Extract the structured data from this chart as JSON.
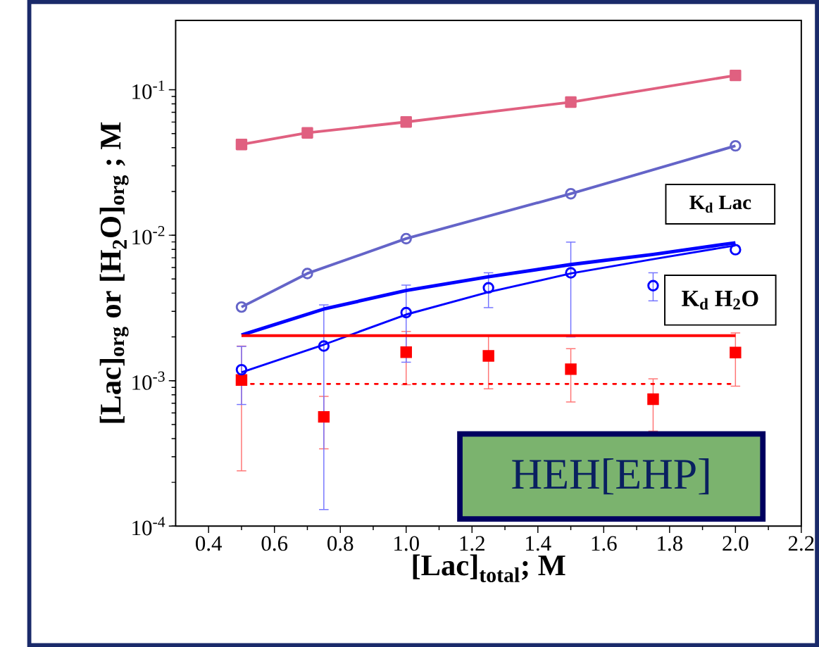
{
  "chart_data": {
    "type": "line",
    "xlabel": "[Lac]$_{total}$; M",
    "ylabel": "[Lac]$_{org}$ or [H$_{2}$O]$_{org}$ ; M",
    "annotations": [
      "K$_{d}$ Lac",
      "K$_{d}$ H$_{2}$O",
      "HEH[EHP]"
    ],
    "log": "y",
    "grid": false,
    "xlim": [
      0.3,
      2.2
    ],
    "ylim": [
      0.0001,
      0.3
    ],
    "xticks": [
      {
        "value": 0.4,
        "label": "0.4"
      },
      {
        "value": 0.6,
        "label": "0.6"
      },
      {
        "value": 0.8,
        "label": "0.8"
      },
      {
        "value": 1.0,
        "label": "1.0"
      },
      {
        "value": 1.2,
        "label": "1.2"
      },
      {
        "value": 1.4,
        "label": "1.4"
      },
      {
        "value": 1.6,
        "label": "1.6"
      },
      {
        "value": 1.8,
        "label": "1.8"
      },
      {
        "value": 2.0,
        "label": "2.0"
      },
      {
        "value": 2.2,
        "label": "2.2"
      }
    ],
    "yticks": [
      {
        "value": 0.0001,
        "label": "10$^{-4}$"
      },
      {
        "value": 0.001,
        "label": "10$^{-3}$"
      },
      {
        "value": 0.01,
        "label": "10$^{-2}$"
      },
      {
        "value": 0.1,
        "label": "10$^{-1}$"
      }
    ],
    "series": [
      {
        "color": "#e06080",
        "marker": "square",
        "line_style": "solid",
        "x": [
          0.5,
          0.7,
          1.0,
          1.5,
          2.0
        ],
        "values": [
          0.0421,
          0.0506,
          0.0601,
          0.0823,
          0.1256
        ]
      },
      {
        "color": "#6464c8",
        "marker": "circle",
        "line_style": "solid",
        "x": [
          0.5,
          0.7,
          1.0,
          1.5,
          2.0
        ],
        "values": [
          0.00321,
          0.00546,
          0.00948,
          0.0193,
          0.0412
        ]
      },
      {
        "type": "scatter",
        "color": "#ff0000",
        "marker": "square",
        "x": [
          0.5,
          0.75,
          1.0,
          1.25,
          1.5,
          1.75,
          2.0
        ],
        "values": [
          0.00101,
          0.000564,
          0.00157,
          0.00148,
          0.0012,
          0.000746,
          0.00156
        ],
        "errors": [
          [
            0.00024,
            0.00173
          ],
          [
            0.00034,
            0.00078
          ],
          [
            0.000938,
            0.00218
          ],
          [
            0.000879,
            0.00204
          ],
          [
            0.000714,
            0.00166
          ],
          [
            0.00045,
            0.00103
          ],
          [
            0.000917,
            0.00213
          ]
        ]
      },
      {
        "type": "scatter",
        "color": "#0000ff",
        "marker": "circle",
        "x": [
          0.5,
          0.75,
          1.0,
          1.25,
          1.5,
          1.75,
          2.0
        ],
        "values": [
          0.00119,
          0.00173,
          0.00294,
          0.00435,
          0.00552,
          0.0045,
          0.00796
        ],
        "errors": [
          [
            0.000686,
            0.00172
          ],
          [
            0.00013,
            0.00332
          ],
          [
            0.00134,
            0.00454
          ],
          [
            0.00318,
            0.00552
          ],
          [
            0.002,
            0.00897
          ],
          [
            0.00354,
            0.00552
          ],
          null
        ]
      },
      {
        "color": "#0000ff",
        "marker": "none",
        "line_style": "solid",
        "x": [
          0.5,
          0.75,
          1.0,
          1.25,
          1.5,
          1.75,
          2.0
        ],
        "values": [
          0.00114,
          0.00177,
          0.00285,
          0.00407,
          0.00546,
          0.00685,
          0.00851
        ]
      },
      {
        "color": "#0000ff",
        "marker": "none",
        "line_style": "solid",
        "x": [
          0.5,
          0.75,
          1.0,
          1.25,
          1.5,
          1.75,
          2.0
        ],
        "values": [
          0.00206,
          0.00311,
          0.00417,
          0.00518,
          0.00629,
          0.00739,
          0.00888
        ]
      },
      {
        "color": "#ff0000",
        "marker": "none",
        "line_style": "solid",
        "x": [
          0.5,
          2.0
        ],
        "values": [
          0.00204,
          0.00204
        ]
      },
      {
        "color": "#ff0000",
        "marker": "none",
        "line_style": "dotted",
        "x": [
          0.5,
          2.0
        ],
        "values": [
          0.00095,
          0.00095
        ]
      }
    ]
  }
}
